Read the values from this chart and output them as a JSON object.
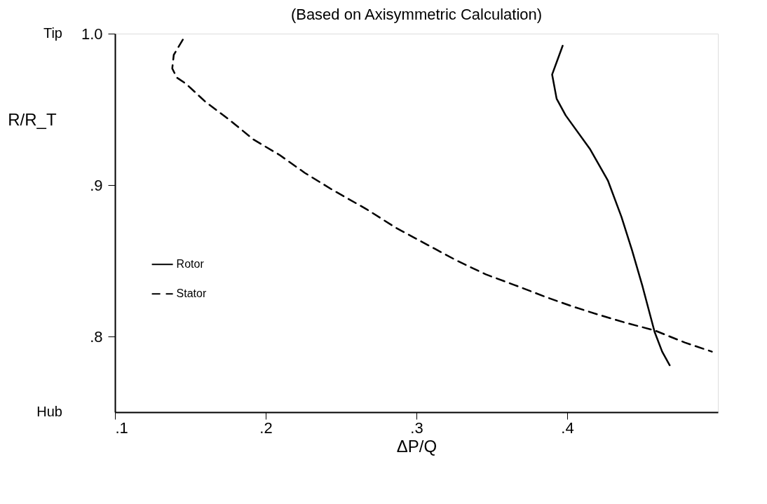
{
  "chart_data": {
    "type": "line",
    "title": "(Based on Axisymmetric Calculation)",
    "xlabel": "ΔP/Q",
    "ylabel": "R/R_T",
    "xlim": [
      0.1,
      0.5
    ],
    "ylim": [
      0.75,
      1.0
    ],
    "xticks": [
      {
        "value": 0.1,
        "label": ".1"
      },
      {
        "value": 0.2,
        "label": ".2"
      },
      {
        "value": 0.3,
        "label": ".3"
      },
      {
        "value": 0.4,
        "label": ".4"
      }
    ],
    "yticks": [
      {
        "value": 0.8,
        "label": ".8"
      },
      {
        "value": 0.9,
        "label": ".9"
      },
      {
        "value": 1.0,
        "label": "1.0"
      }
    ],
    "annotations": [
      "Tip",
      "Hub"
    ],
    "legend": "left",
    "grid": false,
    "series": [
      {
        "name": "Rotor",
        "color": "#000000",
        "line_style": "solid",
        "x": [
          0.397,
          0.39,
          0.393,
          0.399,
          0.415,
          0.427,
          0.436,
          0.443,
          0.45,
          0.458,
          0.463,
          0.468
        ],
        "values": [
          0.992,
          0.973,
          0.957,
          0.946,
          0.924,
          0.903,
          0.879,
          0.857,
          0.833,
          0.803,
          0.79,
          0.781
        ]
      },
      {
        "name": "Stator",
        "color": "#000000",
        "line_style": "dashed",
        "x": [
          0.145,
          0.139,
          0.138,
          0.141,
          0.147,
          0.16,
          0.176,
          0.192,
          0.209,
          0.226,
          0.244,
          0.267,
          0.286,
          0.312,
          0.327,
          0.346,
          0.365,
          0.386,
          0.403,
          0.422,
          0.439,
          0.458,
          0.478,
          0.496
        ],
        "values": [
          0.996,
          0.986,
          0.977,
          0.971,
          0.967,
          0.955,
          0.943,
          0.93,
          0.92,
          0.908,
          0.897,
          0.884,
          0.872,
          0.858,
          0.85,
          0.841,
          0.834,
          0.826,
          0.82,
          0.814,
          0.809,
          0.804,
          0.796,
          0.79
        ]
      }
    ]
  }
}
